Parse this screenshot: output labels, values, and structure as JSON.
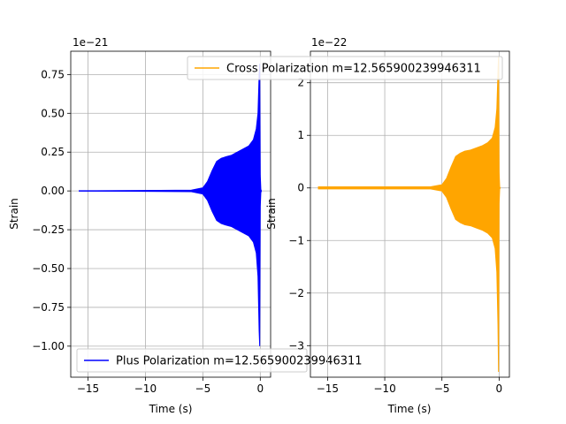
{
  "chart_data": [
    {
      "type": "line",
      "title": "",
      "xlabel": "Time (s)",
      "ylabel": "Strain",
      "offset_text": "1e−21",
      "xlim": [
        -16.5,
        0.9
      ],
      "ylim": [
        -1.2,
        0.9
      ],
      "x_ticks": [
        -15,
        -10,
        -5,
        0
      ],
      "x_tick_labels": [
        "−15",
        "−10",
        "−5",
        "0"
      ],
      "y_ticks": [
        0.75,
        0.5,
        0.25,
        0.0,
        -0.25,
        -0.5,
        -0.75,
        -1.0
      ],
      "y_tick_labels": [
        "0.75",
        "0.50",
        "0.25",
        "0.00",
        "−0.25",
        "−0.50",
        "−0.75",
        "−1.00"
      ],
      "grid": true,
      "legend_position": "lower-left",
      "series": [
        {
          "name": "Plus Polarization m=12.565900239946311",
          "color": "#0000ff",
          "envelope": {
            "x": [
              -15.8,
              -6.0,
              -5.0,
              -4.6,
              -4.2,
              -3.8,
              -3.4,
              -3.0,
              -2.5,
              -2.0,
              -1.5,
              -1.0,
              -0.6,
              -0.35,
              -0.2,
              -0.1,
              -0.05,
              0.0,
              0.05,
              0.1
            ],
            "upper": [
              0.0,
              0.005,
              0.02,
              0.06,
              0.13,
              0.19,
              0.21,
              0.22,
              0.23,
              0.25,
              0.27,
              0.29,
              0.33,
              0.4,
              0.5,
              0.75,
              0.82,
              0.1,
              0.01,
              0.0
            ],
            "lower": [
              0.0,
              -0.005,
              -0.02,
              -0.06,
              -0.13,
              -0.19,
              -0.21,
              -0.22,
              -0.23,
              -0.25,
              -0.27,
              -0.29,
              -0.33,
              -0.4,
              -0.55,
              -0.9,
              -1.0,
              -0.1,
              -0.01,
              0.0
            ]
          }
        }
      ]
    },
    {
      "type": "line",
      "title": "",
      "xlabel": "Time (s)",
      "ylabel": "Strain",
      "offset_text": "1e−22",
      "xlim": [
        -16.5,
        0.9
      ],
      "ylim": [
        -3.6,
        2.6
      ],
      "x_ticks": [
        -15,
        -10,
        -5,
        0
      ],
      "x_tick_labels": [
        "−15",
        "−10",
        "−5",
        "0"
      ],
      "y_ticks": [
        2,
        1,
        0,
        -1,
        -2,
        -3
      ],
      "y_tick_labels": [
        "2",
        "1",
        "0",
        "−1",
        "−2",
        "−3"
      ],
      "grid": true,
      "legend_position": "top",
      "series": [
        {
          "name": "Cross Polarization m=12.565900239946311",
          "color": "#ffa500",
          "envelope": {
            "x": [
              -15.8,
              -6.0,
              -5.0,
              -4.6,
              -4.2,
              -3.8,
              -3.4,
              -3.0,
              -2.5,
              -2.0,
              -1.5,
              -1.0,
              -0.6,
              -0.35,
              -0.2,
              -0.1,
              -0.05,
              0.0,
              0.05,
              0.1
            ],
            "upper": [
              0.02,
              0.02,
              0.06,
              0.18,
              0.4,
              0.6,
              0.66,
              0.7,
              0.72,
              0.76,
              0.8,
              0.86,
              0.95,
              1.15,
              1.5,
              2.2,
              2.5,
              0.3,
              0.02,
              0.0
            ],
            "lower": [
              -0.02,
              -0.02,
              -0.06,
              -0.18,
              -0.4,
              -0.6,
              -0.66,
              -0.7,
              -0.72,
              -0.76,
              -0.8,
              -0.86,
              -0.95,
              -1.15,
              -1.6,
              -2.6,
              -3.5,
              -0.3,
              -0.02,
              0.0
            ]
          }
        }
      ]
    }
  ]
}
